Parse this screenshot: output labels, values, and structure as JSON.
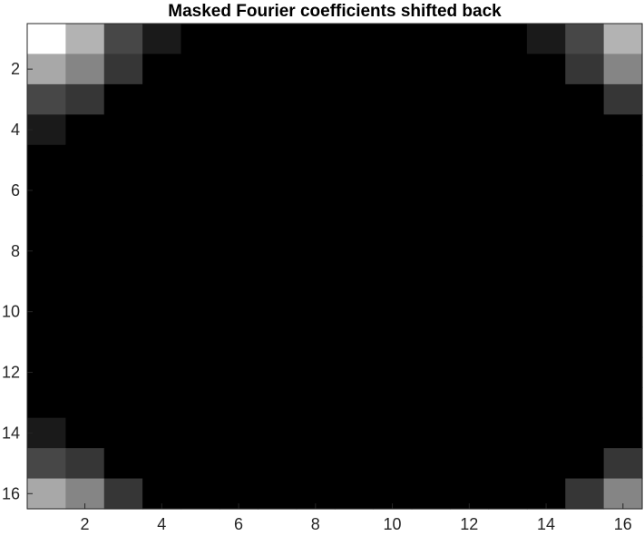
{
  "chart_data": {
    "type": "heatmap",
    "title": "Masked Fourier coefficients shifted back",
    "xlabel": "",
    "ylabel": "",
    "colormap": "gray",
    "clim": [
      0,
      1
    ],
    "xlim": [
      0.5,
      16.5
    ],
    "ylim": [
      0.5,
      16.5
    ],
    "y_direction": "reverse",
    "grid": false,
    "x_ticks": [
      2,
      4,
      6,
      8,
      10,
      12,
      14,
      16
    ],
    "y_ticks": [
      2,
      4,
      6,
      8,
      10,
      12,
      14,
      16
    ],
    "x_tick_labels": [
      "2",
      "4",
      "6",
      "8",
      "10",
      "12",
      "14",
      "16"
    ],
    "y_tick_labels": [
      "2",
      "4",
      "6",
      "8",
      "10",
      "12",
      "14",
      "16"
    ],
    "rows": 16,
    "cols": 16,
    "values": [
      [
        1.0,
        0.7,
        0.28,
        0.1,
        0,
        0,
        0,
        0,
        0,
        0,
        0,
        0,
        0,
        0.1,
        0.28,
        0.7
      ],
      [
        0.66,
        0.52,
        0.21,
        0,
        0,
        0,
        0,
        0,
        0,
        0,
        0,
        0,
        0,
        0,
        0.21,
        0.52
      ],
      [
        0.28,
        0.21,
        0,
        0,
        0,
        0,
        0,
        0,
        0,
        0,
        0,
        0,
        0,
        0,
        0,
        0.21
      ],
      [
        0.1,
        0,
        0,
        0,
        0,
        0,
        0,
        0,
        0,
        0,
        0,
        0,
        0,
        0,
        0,
        0
      ],
      [
        0,
        0,
        0,
        0,
        0,
        0,
        0,
        0,
        0,
        0,
        0,
        0,
        0,
        0,
        0,
        0
      ],
      [
        0,
        0,
        0,
        0,
        0,
        0,
        0,
        0,
        0,
        0,
        0,
        0,
        0,
        0,
        0,
        0
      ],
      [
        0,
        0,
        0,
        0,
        0,
        0,
        0,
        0,
        0,
        0,
        0,
        0,
        0,
        0,
        0,
        0
      ],
      [
        0,
        0,
        0,
        0,
        0,
        0,
        0,
        0,
        0,
        0,
        0,
        0,
        0,
        0,
        0,
        0
      ],
      [
        0,
        0,
        0,
        0,
        0,
        0,
        0,
        0,
        0,
        0,
        0,
        0,
        0,
        0,
        0,
        0
      ],
      [
        0,
        0,
        0,
        0,
        0,
        0,
        0,
        0,
        0,
        0,
        0,
        0,
        0,
        0,
        0,
        0
      ],
      [
        0,
        0,
        0,
        0,
        0,
        0,
        0,
        0,
        0,
        0,
        0,
        0,
        0,
        0,
        0,
        0
      ],
      [
        0,
        0,
        0,
        0,
        0,
        0,
        0,
        0,
        0,
        0,
        0,
        0,
        0,
        0,
        0,
        0
      ],
      [
        0,
        0,
        0,
        0,
        0,
        0,
        0,
        0,
        0,
        0,
        0,
        0,
        0,
        0,
        0,
        0
      ],
      [
        0.1,
        0,
        0,
        0,
        0,
        0,
        0,
        0,
        0,
        0,
        0,
        0,
        0,
        0,
        0,
        0
      ],
      [
        0.28,
        0.21,
        0,
        0,
        0,
        0,
        0,
        0,
        0,
        0,
        0,
        0,
        0,
        0,
        0,
        0.21
      ],
      [
        0.66,
        0.52,
        0.21,
        0,
        0,
        0,
        0,
        0,
        0,
        0,
        0,
        0,
        0,
        0,
        0.21,
        0.52
      ]
    ]
  },
  "colors": {
    "background": "#ffffff",
    "axis": "#262626",
    "title": "#000000"
  }
}
